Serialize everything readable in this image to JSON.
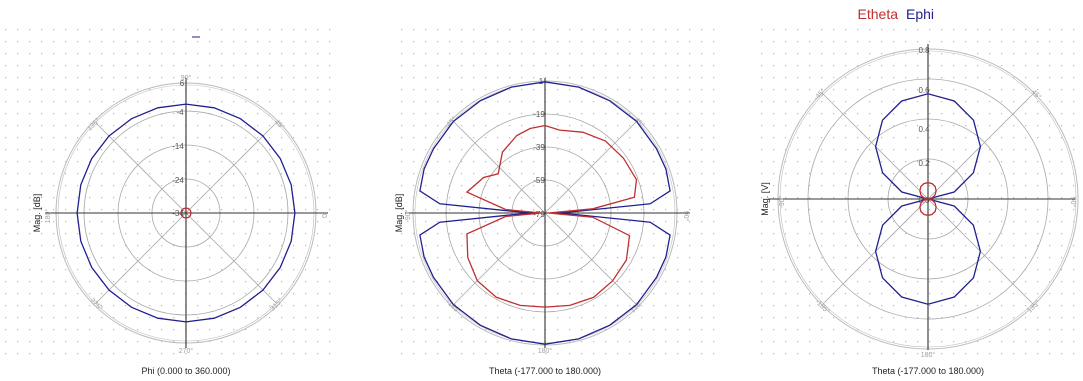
{
  "legend": {
    "etheta_label": "Etheta",
    "ephi_label": "Ephi",
    "etheta_color": "#c03030",
    "ephi_color": "#202090"
  },
  "chart_data": [
    {
      "type": "polar",
      "xlabel": "Phi (0.000 to 360.000)",
      "ylabel": "Mag. [dB]",
      "radial_ticks": [
        "6",
        "-4",
        "-14",
        "-24",
        "-34"
      ],
      "angle_labels": [
        "90°",
        "0",
        "270°",
        "180°",
        "135°",
        "45°",
        "225°",
        "315°"
      ],
      "rlim": [
        -34,
        6
      ],
      "series": [
        {
          "color": "#202090",
          "values": [
            [
              0,
              -1.5
            ],
            [
              15,
              -1.5
            ],
            [
              30,
              -1.5
            ],
            [
              45,
              -1.5
            ],
            [
              60,
              -1.5
            ],
            [
              75,
              -1.5
            ],
            [
              90,
              -1.5
            ],
            [
              105,
              -1.5
            ],
            [
              120,
              -1.5
            ],
            [
              135,
              -1.5
            ],
            [
              150,
              -1.5
            ],
            [
              165,
              -1.5
            ],
            [
              180,
              -1.5
            ],
            [
              195,
              -1.5
            ],
            [
              210,
              -1.5
            ],
            [
              225,
              -1.5
            ],
            [
              240,
              -1.5
            ],
            [
              255,
              -1.5
            ],
            [
              270,
              -1.5
            ],
            [
              285,
              -1.5
            ],
            [
              300,
              -1.5
            ],
            [
              315,
              -1.5
            ],
            [
              330,
              -1.5
            ],
            [
              345,
              -1.5
            ]
          ]
        },
        {
          "color": "#c03030",
          "values": [
            [
              0,
              -32.5
            ],
            [
              30,
              -32.5
            ],
            [
              60,
              -32.5
            ],
            [
              90,
              -32.5
            ],
            [
              120,
              -32.5
            ],
            [
              150,
              -32.5
            ],
            [
              180,
              -32.5
            ],
            [
              210,
              -32.5
            ],
            [
              240,
              -32.5
            ],
            [
              270,
              -32.5
            ],
            [
              300,
              -32.5
            ],
            [
              330,
              -32.5
            ]
          ]
        }
      ]
    },
    {
      "type": "polar",
      "xlabel": "Theta (-177.000 to 180.000)",
      "ylabel": "Mag. [dB]",
      "radial_ticks": [
        "1",
        "-19",
        "-39",
        "-59",
        "-79"
      ],
      "angle_labels": [
        "180°",
        "90°",
        "-90°",
        "135°",
        "45°",
        "-135°",
        "-45°"
      ],
      "rlim": [
        -79,
        1
      ],
      "series": [
        {
          "color": "#202090",
          "values": [
            [
              0,
              -74
            ],
            [
              3,
              -60
            ],
            [
              5,
              -15
            ],
            [
              10,
              -2
            ],
            [
              20,
              -1
            ],
            [
              30,
              -1
            ],
            [
              45,
              -0.5
            ],
            [
              60,
              -0.5
            ],
            [
              75,
              0
            ],
            [
              90,
              0.5
            ],
            [
              105,
              0
            ],
            [
              120,
              -0.5
            ],
            [
              135,
              -0.5
            ],
            [
              150,
              -1
            ],
            [
              160,
              -1
            ],
            [
              170,
              -2
            ],
            [
              175,
              -15
            ],
            [
              177,
              -60
            ],
            [
              180,
              -74
            ],
            [
              183,
              -60
            ],
            [
              185,
              -15
            ],
            [
              190,
              -2
            ],
            [
              200,
              -1
            ],
            [
              210,
              -1
            ],
            [
              225,
              -0.5
            ],
            [
              240,
              -0.5
            ],
            [
              255,
              0
            ],
            [
              270,
              0.5
            ],
            [
              285,
              0
            ],
            [
              300,
              -0.5
            ],
            [
              315,
              -0.5
            ],
            [
              330,
              -1
            ],
            [
              340,
              -1
            ],
            [
              350,
              -2
            ],
            [
              355,
              -15
            ],
            [
              357,
              -60
            ]
          ]
        },
        {
          "color": "#c03030",
          "values": [
            [
              0,
              -77
            ],
            [
              5,
              -50
            ],
            [
              10,
              -24
            ],
            [
              20,
              -20
            ],
            [
              35,
              -21
            ],
            [
              50,
              -22
            ],
            [
              65,
              -25
            ],
            [
              80,
              -28
            ],
            [
              90,
              -26
            ],
            [
              100,
              -27
            ],
            [
              110,
              -29
            ],
            [
              125,
              -34
            ],
            [
              140,
              -42
            ],
            [
              150,
              -36
            ],
            [
              165,
              -30
            ],
            [
              175,
              -55
            ],
            [
              180,
              -77
            ],
            [
              185,
              -55
            ],
            [
              195,
              -30
            ],
            [
              210,
              -25
            ],
            [
              225,
              -21
            ],
            [
              240,
              -20
            ],
            [
              255,
              -21
            ],
            [
              270,
              -22
            ],
            [
              285,
              -21
            ],
            [
              300,
              -20
            ],
            [
              315,
              -21
            ],
            [
              330,
              -22
            ],
            [
              345,
              -26
            ],
            [
              355,
              -50
            ]
          ]
        }
      ]
    },
    {
      "type": "polar",
      "title": "Etheta  Ephi",
      "xlabel": "Theta (-177.000 to 180.000)",
      "ylabel": "Mag. [V]",
      "radial_ticks": [
        "0.8",
        "0.6",
        "0.4",
        "0.2",
        "0.0"
      ],
      "angle_labels": [
        "180°",
        "90°",
        "-90°",
        "135°",
        "45°",
        "-135°",
        "-45°"
      ],
      "rlim": [
        0,
        0.9
      ],
      "series": [
        {
          "color": "#202090",
          "values": [
            [
              0,
              0.0
            ],
            [
              15,
              0.165
            ],
            [
              30,
              0.319
            ],
            [
              45,
              0.451
            ],
            [
              60,
              0.553
            ],
            [
              75,
              0.617
            ],
            [
              90,
              0.64
            ],
            [
              105,
              0.617
            ],
            [
              120,
              0.553
            ],
            [
              135,
              0.451
            ],
            [
              150,
              0.319
            ],
            [
              165,
              0.165
            ],
            [
              180,
              0.0
            ],
            [
              195,
              0.165
            ],
            [
              210,
              0.319
            ],
            [
              225,
              0.451
            ],
            [
              240,
              0.553
            ],
            [
              255,
              0.617
            ],
            [
              270,
              0.64
            ],
            [
              285,
              0.617
            ],
            [
              300,
              0.553
            ],
            [
              315,
              0.451
            ],
            [
              330,
              0.319
            ],
            [
              345,
              0.165
            ]
          ]
        },
        {
          "color": "#c03030",
          "values": [
            [
              0,
              0.0
            ],
            [
              15,
              0.026
            ],
            [
              30,
              0.05
            ],
            [
              45,
              0.07
            ],
            [
              60,
              0.087
            ],
            [
              75,
              0.097
            ],
            [
              90,
              0.1
            ],
            [
              105,
              0.097
            ],
            [
              120,
              0.087
            ],
            [
              135,
              0.07
            ],
            [
              150,
              0.05
            ],
            [
              165,
              0.026
            ],
            [
              180,
              0.0
            ],
            [
              195,
              0.026
            ],
            [
              210,
              0.05
            ],
            [
              225,
              0.07
            ],
            [
              240,
              0.087
            ],
            [
              255,
              0.097
            ],
            [
              270,
              0.1
            ],
            [
              285,
              0.097
            ],
            [
              300,
              0.087
            ],
            [
              315,
              0.07
            ],
            [
              330,
              0.05
            ],
            [
              345,
              0.026
            ]
          ]
        }
      ]
    }
  ]
}
